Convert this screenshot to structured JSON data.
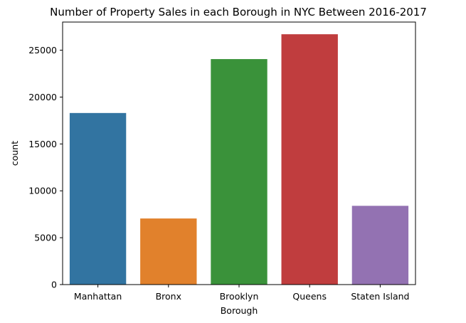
{
  "chart_data": {
    "type": "bar",
    "title": "Number of Property Sales in each Borough in NYC Between 2016-2017",
    "xlabel": "Borough",
    "ylabel": "count",
    "categories": [
      "Manhattan",
      "Bronx",
      "Brooklyn",
      "Queens",
      "Staten Island"
    ],
    "values": [
      18300,
      7050,
      24050,
      26700,
      8400
    ],
    "colors": [
      "#3274a1",
      "#e1812c",
      "#3a923a",
      "#c03d3e",
      "#9372b2"
    ],
    "ylim": [
      0,
      28000
    ],
    "yticks": [
      0,
      5000,
      10000,
      15000,
      20000,
      25000
    ],
    "grid": false,
    "legend": "none"
  }
}
